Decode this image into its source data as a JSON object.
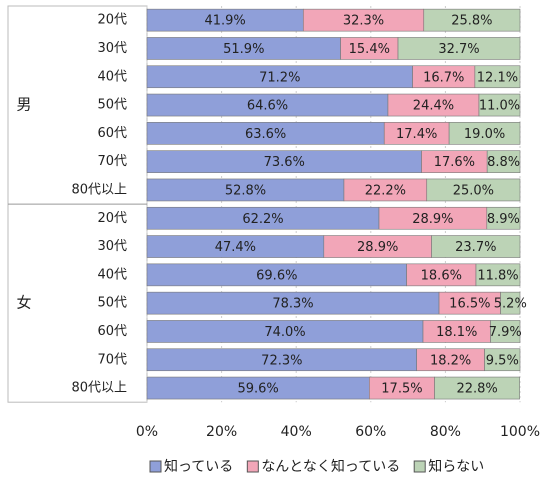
{
  "chart_data": {
    "type": "stacked-barh",
    "groups": [
      "男",
      "女"
    ],
    "categories": [
      "20代",
      "30代",
      "40代",
      "50代",
      "60代",
      "70代",
      "80代以上",
      "20代",
      "30代",
      "40代",
      "50代",
      "60代",
      "70代",
      "80代以上"
    ],
    "series": [
      {
        "name": "知っている",
        "color": "#8f9fd9",
        "values": [
          41.9,
          51.9,
          71.2,
          64.6,
          63.6,
          73.6,
          52.8,
          62.2,
          47.4,
          69.6,
          78.3,
          74.0,
          72.3,
          59.6
        ],
        "value_labels": [
          "41.9%",
          "51.9%",
          "71.2%",
          "64.6%",
          "63.6%",
          "73.6%",
          "52.8%",
          "62.2%",
          "47.4%",
          "69.6%",
          "78.3%",
          "74.0%",
          "72.3%",
          "59.6%"
        ]
      },
      {
        "name": "なんとなく知っている",
        "color": "#f2a6b8",
        "values": [
          32.3,
          15.4,
          16.7,
          24.4,
          17.4,
          17.6,
          22.2,
          28.9,
          28.9,
          18.6,
          16.5,
          18.1,
          18.2,
          17.5
        ],
        "value_labels": [
          "32.3%",
          "15.4%",
          "16.7%",
          "24.4%",
          "17.4%",
          "17.6%",
          "22.2%",
          "28.9%",
          "28.9%",
          "18.6%",
          "16.5%",
          "18.1%",
          "18.2%",
          "17.5%"
        ]
      },
      {
        "name": "知らない",
        "color": "#bcd3b6",
        "values": [
          25.8,
          32.7,
          12.1,
          11.0,
          19.0,
          8.8,
          25.0,
          8.9,
          23.7,
          11.8,
          5.2,
          7.9,
          9.5,
          22.8
        ],
        "value_labels": [
          "25.8%",
          "32.7%",
          "12.1%",
          "11.0%",
          "19.0%",
          "8.8%",
          "25.0%",
          "8.9%",
          "23.7%",
          "11.8%",
          "5.2%",
          "7.9%",
          "9.5%",
          "22.8%"
        ]
      }
    ],
    "xlim": [
      0,
      100
    ],
    "xticks": [
      {
        "value": 0,
        "label": "0%"
      },
      {
        "value": 20,
        "label": "20%"
      },
      {
        "value": 40,
        "label": "40%"
      },
      {
        "value": 60,
        "label": "60%"
      },
      {
        "value": 80,
        "label": "80%"
      },
      {
        "value": 100,
        "label": "100%"
      }
    ],
    "grid": true,
    "legend": "bottom"
  }
}
